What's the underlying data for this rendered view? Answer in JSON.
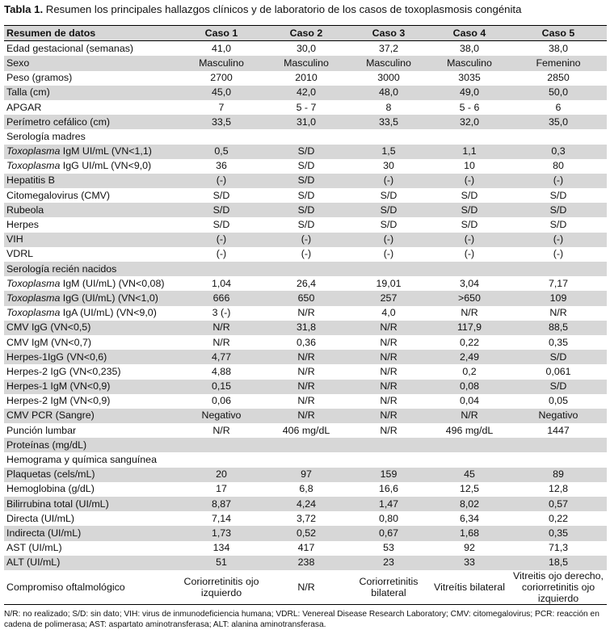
{
  "title": {
    "label": "Tabla 1.",
    "text": " Resumen los principales hallazgos clínicos y de laboratorio de los casos de toxoplasmosis congénita"
  },
  "table": {
    "columns": [
      "Resumen de datos",
      "Caso 1",
      "Caso 2",
      "Caso 3",
      "Caso 4",
      "Caso 5"
    ],
    "rows": [
      {
        "label": "Edad gestacional (semanas)",
        "values": [
          "41,0",
          "30,0",
          "37,2",
          "38,0",
          "38,0"
        ]
      },
      {
        "label": "Sexo",
        "values": [
          "Masculino",
          "Masculino",
          "Masculino",
          "Masculino",
          "Femenino"
        ]
      },
      {
        "label": "Peso (gramos)",
        "values": [
          "2700",
          "2010",
          "3000",
          "3035",
          "2850"
        ]
      },
      {
        "label": "Talla (cm)",
        "values": [
          "45,0",
          "42,0",
          "48,0",
          "49,0",
          "50,0"
        ]
      },
      {
        "label": "APGAR",
        "values": [
          "7",
          "5 - 7",
          "8",
          "5 - 6",
          "6"
        ]
      },
      {
        "label": "Perímetro cefálico (cm)",
        "values": [
          "33,5",
          "31,0",
          "33,5",
          "32,0",
          "35,0"
        ]
      },
      {
        "label": "Serología madres",
        "values": [
          "",
          "",
          "",
          "",
          ""
        ]
      },
      {
        "italic": "Toxoplasma",
        "label": " IgM UI/mL (VN<1,1)",
        "values": [
          "0,5",
          "S/D",
          "1,5",
          "1,1",
          "0,3"
        ]
      },
      {
        "italic": "Toxoplasma",
        "label": " IgG UI/mL (VN<9,0)",
        "values": [
          "36",
          "S/D",
          "30",
          "10",
          "80"
        ]
      },
      {
        "label": "Hepatitis B",
        "values": [
          "(-)",
          "S/D",
          "(-)",
          "(-)",
          "(-)"
        ]
      },
      {
        "label": "Citomegalovirus (CMV)",
        "values": [
          "S/D",
          "S/D",
          "S/D",
          "S/D",
          "S/D"
        ]
      },
      {
        "label": "Rubeola",
        "values": [
          "S/D",
          "S/D",
          "S/D",
          "S/D",
          "S/D"
        ]
      },
      {
        "label": "Herpes",
        "values": [
          "S/D",
          "S/D",
          "S/D",
          "S/D",
          "S/D"
        ]
      },
      {
        "label": "VIH",
        "values": [
          "(-)",
          "(-)",
          "(-)",
          "(-)",
          "(-)"
        ]
      },
      {
        "label": "VDRL",
        "values": [
          "(-)",
          "(-)",
          "(-)",
          "(-)",
          "(-)"
        ]
      },
      {
        "label": "Serología recién nacidos",
        "values": [
          "",
          "",
          "",
          "",
          ""
        ]
      },
      {
        "italic": "Toxoplasma",
        "label": " IgM (UI/mL) (VN<0,08)",
        "values": [
          "1,04",
          "26,4",
          "19,01",
          "3,04",
          "7,17"
        ]
      },
      {
        "italic": "Toxoplasma",
        "label": " IgG (UI/mL) (VN<1,0)",
        "values": [
          "666",
          "650",
          "257",
          ">650",
          "109"
        ]
      },
      {
        "italic": "Toxoplasma",
        "label": " IgA (UI/mL) (VN<9,0)",
        "values": [
          "3 (-)",
          "N/R",
          "4,0",
          "N/R",
          "N/R"
        ]
      },
      {
        "label": "CMV IgG (VN<0,5)",
        "values": [
          "N/R",
          "31,8",
          "N/R",
          "117,9",
          "88,5"
        ]
      },
      {
        "label": "CMV IgM (VN<0,7)",
        "values": [
          "N/R",
          "0,36",
          "N/R",
          "0,22",
          "0,35"
        ]
      },
      {
        "label": "Herpes-1IgG (VN<0,6)",
        "values": [
          "4,77",
          "N/R",
          "N/R",
          "2,49",
          "S/D"
        ]
      },
      {
        "label": "Herpes-2 IgG (VN<0,235)",
        "values": [
          "4,88",
          "N/R",
          "N/R",
          "0,2",
          "0,061"
        ]
      },
      {
        "label": "Herpes-1 IgM (VN<0,9)",
        "values": [
          "0,15",
          "N/R",
          "N/R",
          "0,08",
          "S/D"
        ]
      },
      {
        "label": "Herpes-2 IgM (VN<0,9)",
        "values": [
          "0,06",
          "N/R",
          "N/R",
          "0,04",
          "0,05"
        ]
      },
      {
        "label": "CMV PCR (Sangre)",
        "values": [
          "Negativo",
          "N/R",
          "N/R",
          "N/R",
          "Negativo"
        ]
      },
      {
        "label": "Punción lumbar",
        "values": [
          "N/R",
          "406 mg/dL",
          "N/R",
          "496 mg/dL",
          "1447"
        ]
      },
      {
        "label": "Proteínas (mg/dL)",
        "values": [
          "",
          "",
          "",
          "",
          ""
        ]
      },
      {
        "label": "Hemograma y química sanguínea",
        "values": [
          "",
          "",
          "",
          "",
          ""
        ]
      },
      {
        "label": "Plaquetas (cels/mL)",
        "values": [
          "20",
          "97",
          "159",
          "45",
          "89"
        ]
      },
      {
        "label": "Hemoglobina (g/dL)",
        "values": [
          "17",
          "6,8",
          "16,6",
          "12,5",
          "12,8"
        ]
      },
      {
        "label": "Bilirrubina total (UI/mL)",
        "values": [
          "8,87",
          "4,24",
          "1,47",
          "8,02",
          "0,57"
        ]
      },
      {
        "label": "Directa (UI/mL)",
        "values": [
          "7,14",
          "3,72",
          "0,80",
          "6,34",
          "0,22"
        ]
      },
      {
        "label": "Indirecta (UI/mL)",
        "values": [
          "1,73",
          "0,52",
          "0,67",
          "1,68",
          "0,35"
        ]
      },
      {
        "label": "AST (UI/mL)",
        "values": [
          "134",
          "417",
          "53",
          "92",
          "71,3"
        ]
      },
      {
        "label": "ALT (UI/mL)",
        "values": [
          "51",
          "238",
          "23",
          "33",
          "18,5"
        ]
      },
      {
        "label": "Compromiso oftalmológico",
        "values": [
          "Coriorretinitis ojo izquierdo",
          "N/R",
          "Coriorretinitis bilateral",
          "Vitreítis bilateral",
          "Vitreitis ojo derecho, coriorretinitis ojo izquierdo"
        ]
      }
    ]
  },
  "footnote": "N/R: no realizado; S/D: sin dato; VIH: virus de inmunodeficiencia humana; VDRL: Venereal Disease Research Laboratory; CMV: citomegalovirus; PCR: reacción en cadena de polimerasa; AST: aspartato aminotransferasa; ALT: alanina aminotransferasa."
}
